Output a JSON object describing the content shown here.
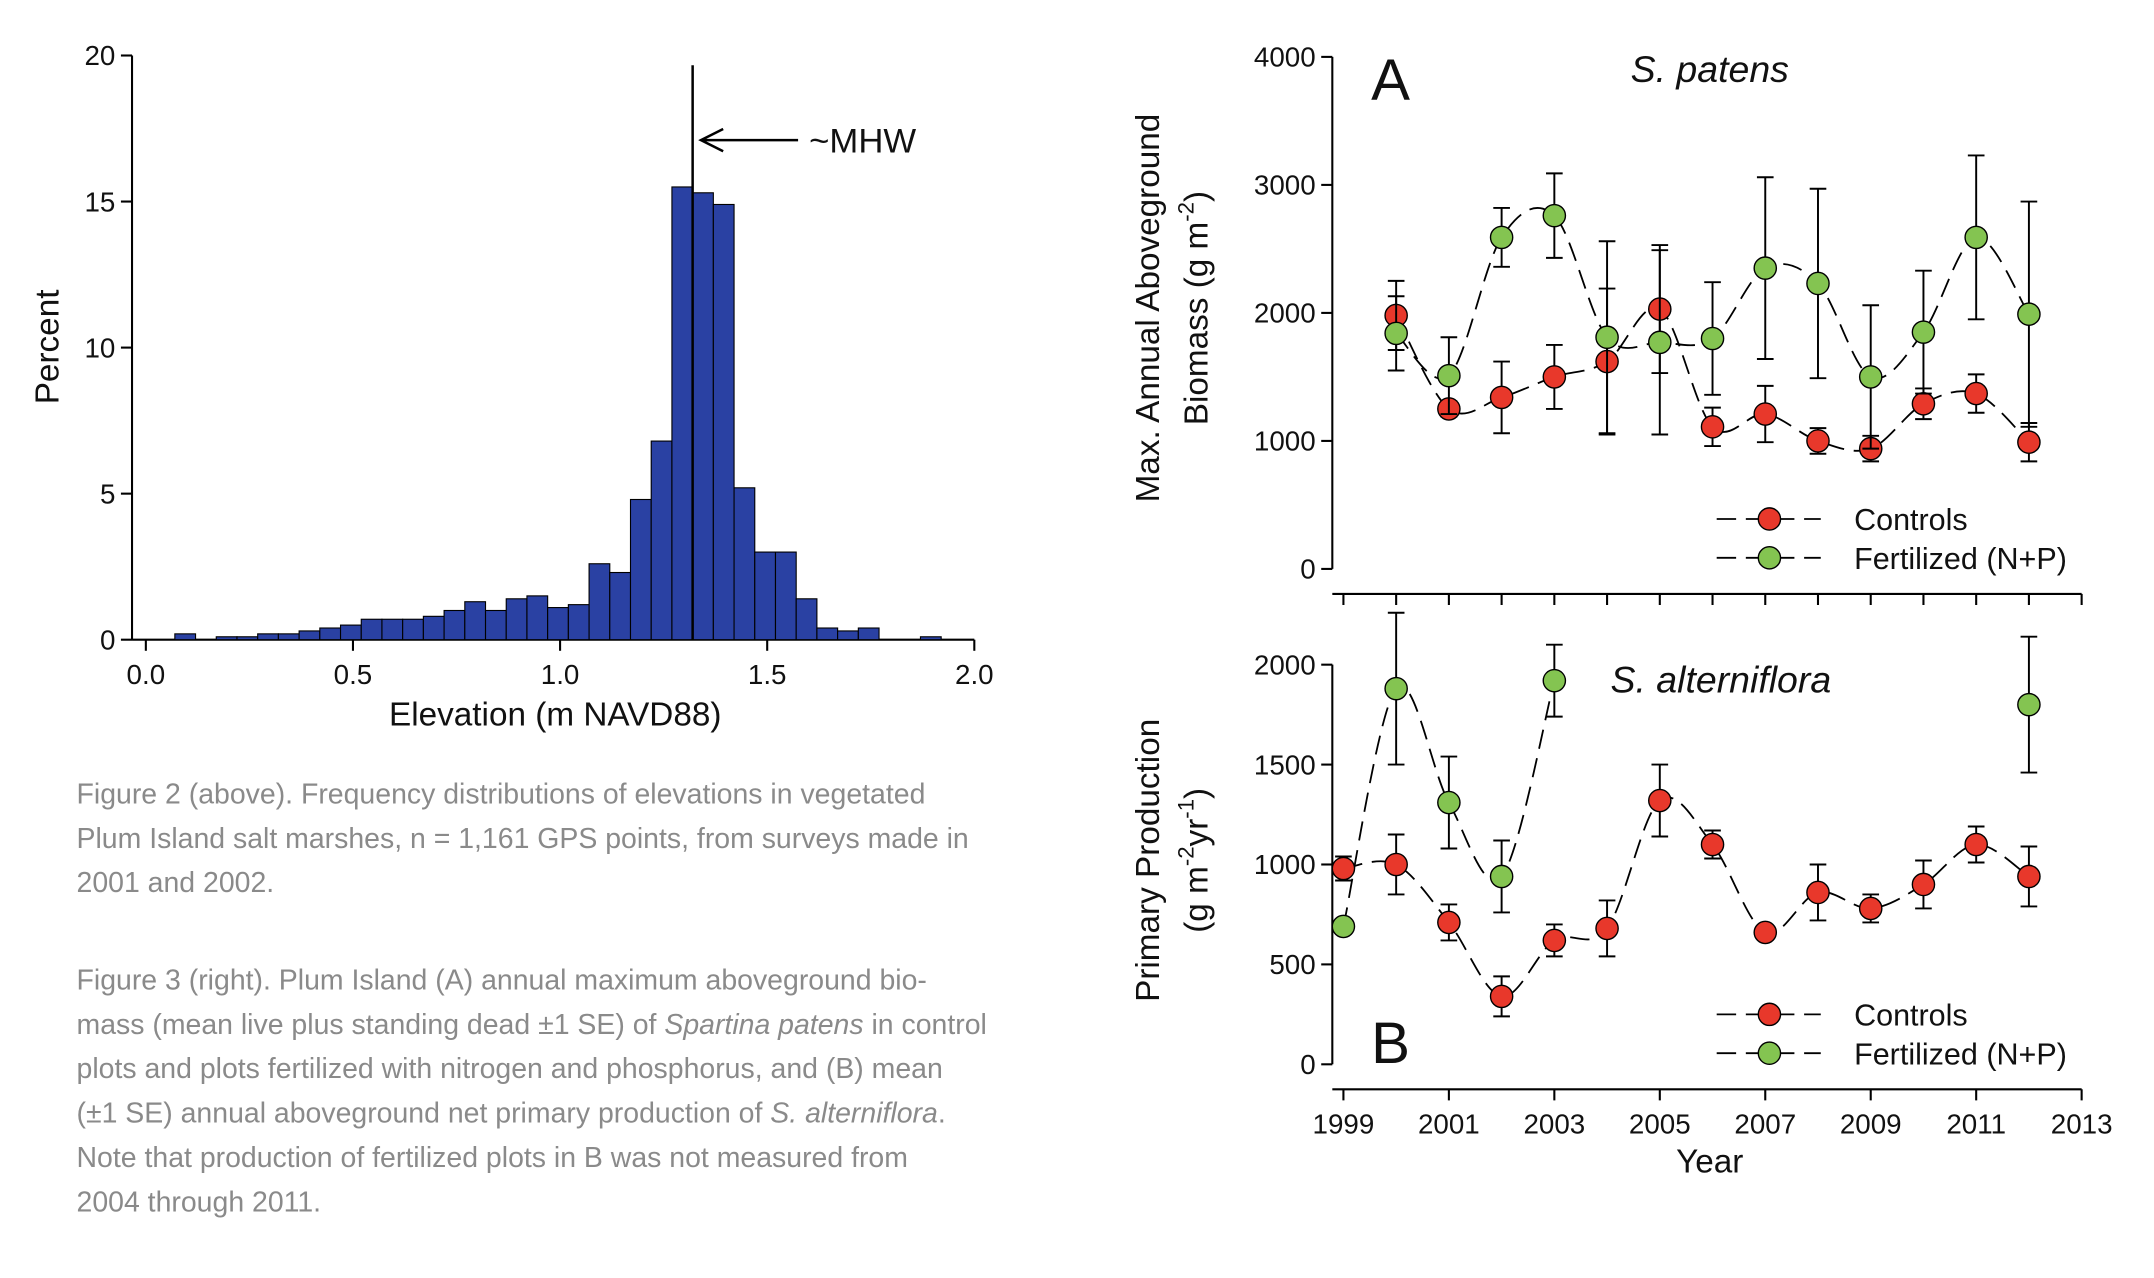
{
  "chart_data": [
    {
      "type": "histogram",
      "xlabel": "Elevation (m NAVD88)",
      "ylabel": "Percent",
      "color": "#2a41a3",
      "bins": [
        0.07,
        0.12,
        0.17,
        0.22,
        0.27,
        0.32,
        0.37,
        0.42,
        0.47,
        0.52,
        0.57,
        0.62,
        0.67,
        0.72,
        0.77,
        0.82,
        0.87,
        0.92,
        0.97,
        1.02,
        1.07,
        1.12,
        1.17,
        1.22,
        1.27,
        1.32,
        1.37,
        1.42,
        1.47,
        1.52,
        1.57,
        1.62,
        1.67,
        1.72,
        1.77,
        1.82,
        1.87,
        1.92
      ],
      "counts": [
        0.2,
        0,
        0.1,
        0.1,
        0.2,
        0.2,
        0.3,
        0.4,
        0.5,
        0.7,
        0.7,
        0.7,
        0.8,
        1.0,
        1.3,
        1.0,
        1.4,
        1.5,
        1.1,
        1.2,
        2.6,
        2.3,
        4.8,
        6.8,
        15.5,
        15.3,
        14.9,
        5.2,
        3.0,
        3.0,
        1.4,
        0.4,
        0.3,
        0.4,
        0,
        0,
        0.1
      ],
      "xlim": [
        -0.03,
        2.0
      ],
      "xticks": [
        {
          "value": 0,
          "label": "0.0"
        },
        0.5,
        {
          "value": 1,
          "label": "1.0"
        },
        1.5,
        {
          "value": 2,
          "label": "2.0"
        }
      ],
      "ylim": [
        0,
        20
      ],
      "yticks": [
        0,
        5,
        10,
        15,
        20
      ],
      "reference_line": {
        "x": 1.32,
        "label": "~MHW"
      }
    },
    {
      "type": "line",
      "panel_label": "A",
      "title": "S. patens",
      "ylabel": [
        [
          "Max. Annual Aboveground"
        ],
        [
          "Biomass (g m",
          "-2",
          ")"
        ]
      ],
      "x": [
        1999,
        2000,
        2001,
        2002,
        2003,
        2004,
        2005,
        2006,
        2007,
        2008,
        2009,
        2010,
        2011,
        2012
      ],
      "series": [
        {
          "name": "Controls",
          "color": "#e8382b",
          "values": [
            null,
            1980,
            1250,
            1340,
            1500,
            1620,
            2030,
            1110,
            1210,
            1000,
            940,
            1290,
            1370,
            990
          ],
          "errors": [
            null,
            270,
            60,
            280,
            250,
            570,
            500,
            150,
            220,
            100,
            100,
            120,
            150,
            150
          ]
        },
        {
          "name": "Fertilized (N+P)",
          "color": "#84c451",
          "values": [
            null,
            1840,
            1510,
            2590,
            2760,
            1810,
            1770,
            1800,
            2350,
            2230,
            1500,
            1850,
            2590,
            1990
          ],
          "errors": [
            null,
            290,
            300,
            230,
            330,
            750,
            720,
            440,
            710,
            740,
            560,
            480,
            640,
            880
          ]
        }
      ],
      "xlim": [
        1999,
        2013
      ],
      "xticks": [
        1999,
        2000,
        2001,
        2002,
        2003,
        2004,
        2005,
        2006,
        2007,
        2008,
        2009,
        2010,
        2011,
        2012,
        2013
      ],
      "show_xtick_labels": false,
      "ylim": [
        0,
        4000
      ],
      "yticks": [
        0,
        1000,
        2000,
        3000,
        4000
      ],
      "legend": "lower right"
    },
    {
      "type": "line",
      "panel_label": "B",
      "title": "S. alterniflora",
      "xlabel": "Year",
      "ylabel": [
        [
          "Primary Production"
        ],
        [
          "(g m",
          "-2",
          "yr",
          "-1",
          ")"
        ]
      ],
      "x": [
        1999,
        2000,
        2001,
        2002,
        2003,
        2004,
        2005,
        2006,
        2007,
        2008,
        2009,
        2010,
        2011,
        2012
      ],
      "series": [
        {
          "name": "Controls",
          "color": "#e8382b",
          "values": [
            980,
            1000,
            710,
            340,
            620,
            680,
            1320,
            1100,
            660,
            860,
            780,
            900,
            1100,
            940
          ],
          "errors": [
            60,
            150,
            90,
            100,
            80,
            140,
            180,
            70,
            20,
            140,
            70,
            120,
            90,
            150
          ]
        },
        {
          "name": "Fertilized (N+P)",
          "color": "#84c451",
          "values": [
            690,
            1880,
            1310,
            940,
            1920,
            null,
            null,
            null,
            null,
            null,
            null,
            null,
            null,
            1800
          ],
          "errors": [
            0,
            380,
            230,
            180,
            180,
            null,
            null,
            null,
            null,
            null,
            null,
            null,
            null,
            340
          ]
        }
      ],
      "xlim": [
        1999,
        2013
      ],
      "xticks": [
        1999,
        2001,
        2003,
        2005,
        2007,
        2009,
        2011,
        2013
      ],
      "show_xtick_labels": true,
      "ylim": [
        0,
        2000
      ],
      "yticks": [
        0,
        500,
        1000,
        1500,
        2000
      ],
      "legend": "lower right"
    }
  ],
  "captions": [
    [
      [
        "Figure 2 (above). Frequency distributions of elevations in vegetated"
      ],
      [
        "Plum Island salt marshes, n = 1,161 GPS points, from surveys made in"
      ],
      [
        "2001 and 2002."
      ]
    ],
    [
      [
        "Figure 3 (right). Plum Island (A) annual maximum aboveground bio-"
      ],
      [
        "mass (mean live plus standing dead ±1 SE) of ",
        "Spartina patens",
        " in control"
      ],
      [
        "plots and plots fertilized with nitrogen and phosphorus, and (B) mean"
      ],
      [
        "(±1 SE) annual aboveground net primary production of ",
        "S. alterniflora",
        "."
      ],
      [
        "Note that production of fertilized plots in B was not measured from"
      ],
      [
        "2004 through 2011."
      ]
    ]
  ]
}
